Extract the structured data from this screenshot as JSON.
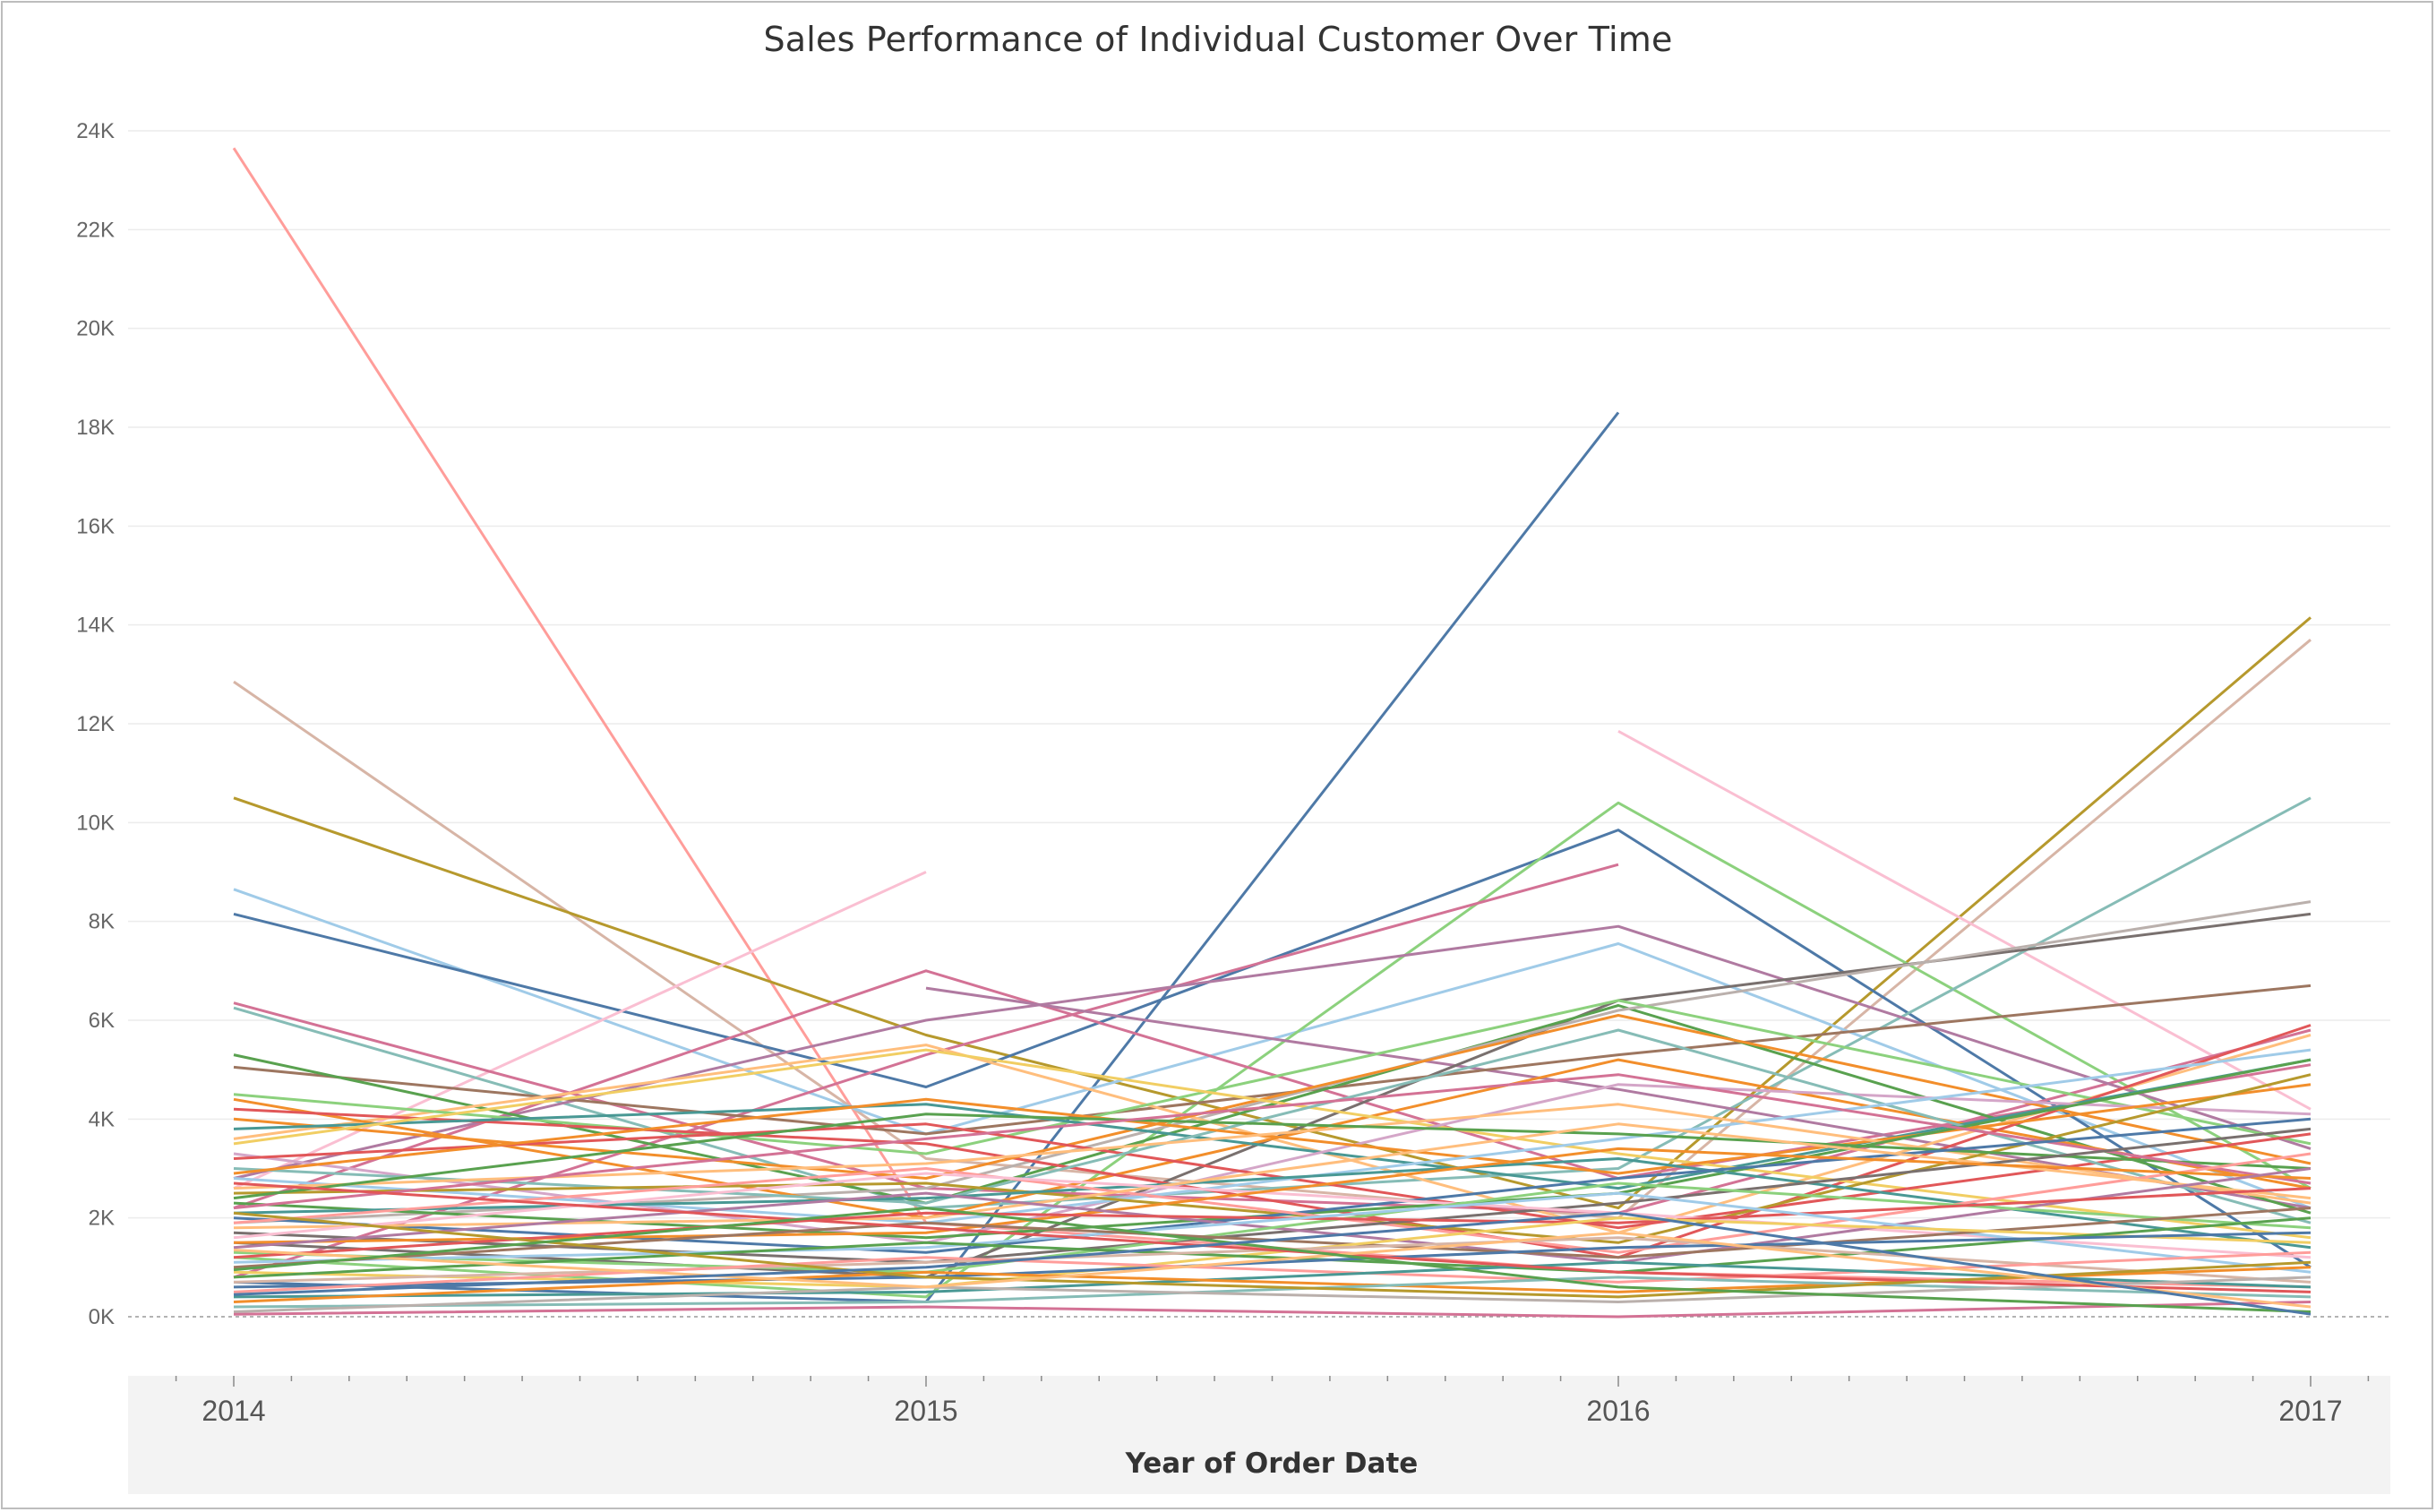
{
  "chart_data": {
    "type": "line",
    "title": "Sales Performance of Individual Customer Over Time",
    "xlabel": "Year of Order Date",
    "ylabel": "",
    "x": [
      2014,
      2015,
      2016,
      2017
    ],
    "x_tick_labels": [
      "2014",
      "2015",
      "2016",
      "2017"
    ],
    "ylim": [
      -1200,
      24000
    ],
    "y_ticks": [
      0,
      2000,
      4000,
      6000,
      8000,
      10000,
      12000,
      14000,
      16000,
      18000,
      20000,
      22000,
      24000
    ],
    "y_tick_labels": [
      "0K",
      "2K",
      "4K",
      "6K",
      "8K",
      "10K",
      "12K",
      "14K",
      "16K",
      "18K",
      "20K",
      "22K",
      "24K"
    ],
    "grid": true,
    "legend": "none",
    "palette": [
      "#4e79a7",
      "#a0cbe8",
      "#f28e2b",
      "#ffbe7d",
      "#59a14f",
      "#8cd17d",
      "#b6992d",
      "#f1ce63",
      "#499894",
      "#86bcb6",
      "#e15759",
      "#ff9d9a",
      "#79706e",
      "#bab0ac",
      "#d37295",
      "#fabfd2",
      "#b07aa1",
      "#d4a6c8",
      "#9d7660",
      "#d7b5a6"
    ],
    "series": [
      {
        "values": [
          23650,
          1900,
          900,
          600
        ],
        "color": "#ff9d9a"
      },
      {
        "values": [
          700,
          300,
          18300,
          null
        ],
        "color": "#4e79a7"
      },
      {
        "values": [
          12850,
          3200,
          2000,
          13700
        ],
        "color": "#d7b5a6"
      },
      {
        "values": [
          10500,
          5700,
          2200,
          14150
        ],
        "color": "#b6992d"
      },
      {
        "values": [
          8650,
          3700,
          7550,
          2200
        ],
        "color": "#a0cbe8"
      },
      {
        "values": [
          8150,
          4650,
          9850,
          1000
        ],
        "color": "#4e79a7"
      },
      {
        "values": [
          null,
          null,
          11850,
          4200
        ],
        "color": "#fabfd2"
      },
      {
        "values": [
          2600,
          9000,
          null,
          null
        ],
        "color": "#fabfd2"
      },
      {
        "values": [
          1200,
          400,
          10400,
          2600
        ],
        "color": "#8cd17d"
      },
      {
        "values": [
          800,
          5300,
          9150,
          null
        ],
        "color": "#d37295"
      },
      {
        "values": [
          6350,
          2600,
          2100,
          5800
        ],
        "color": "#d37295"
      },
      {
        "values": [
          6250,
          2200,
          3000,
          10500
        ],
        "color": "#86bcb6"
      },
      {
        "values": [
          2200,
          7000,
          2800,
          5100
        ],
        "color": "#d37295"
      },
      {
        "values": [
          null,
          6650,
          4600,
          2200
        ],
        "color": "#b07aa1"
      },
      {
        "values": [
          2800,
          6000,
          7900,
          3400
        ],
        "color": "#b07aa1"
      },
      {
        "values": [
          1500,
          800,
          6400,
          8150
        ],
        "color": "#79706e"
      },
      {
        "values": [
          5050,
          3700,
          5300,
          6700
        ],
        "color": "#9d7660"
      },
      {
        "values": [
          5300,
          2300,
          6300,
          2100
        ],
        "color": "#59a14f"
      },
      {
        "values": [
          1900,
          2600,
          6200,
          8400
        ],
        "color": "#bab0ac"
      },
      {
        "values": [
          3600,
          5500,
          1700,
          5700
        ],
        "color": "#ffbe7d"
      },
      {
        "values": [
          4500,
          3300,
          6400,
          3500
        ],
        "color": "#8cd17d"
      },
      {
        "values": [
          4400,
          2000,
          5200,
          2600
        ],
        "color": "#f28e2b"
      },
      {
        "values": [
          4200,
          3500,
          1200,
          5900
        ],
        "color": "#e15759"
      },
      {
        "values": [
          4000,
          2800,
          6100,
          3100
        ],
        "color": "#f28e2b"
      },
      {
        "values": [
          3800,
          4300,
          2600,
          5200
        ],
        "color": "#499894"
      },
      {
        "values": [
          3500,
          5400,
          3300,
          1600
        ],
        "color": "#f1ce63"
      },
      {
        "values": [
          3300,
          1500,
          4700,
          4100
        ],
        "color": "#d4a6c8"
      },
      {
        "values": [
          3200,
          3900,
          1800,
          3700
        ],
        "color": "#e15759"
      },
      {
        "values": [
          3000,
          2300,
          5800,
          1900
        ],
        "color": "#86bcb6"
      },
      {
        "values": [
          2900,
          4400,
          2900,
          4700
        ],
        "color": "#f28e2b"
      },
      {
        "values": [
          2800,
          1900,
          3600,
          5400
        ],
        "color": "#a0cbe8"
      },
      {
        "values": [
          2600,
          3100,
          4300,
          2300
        ],
        "color": "#ffbe7d"
      },
      {
        "values": [
          2500,
          2700,
          1500,
          4900
        ],
        "color": "#b6992d"
      },
      {
        "values": [
          2400,
          4100,
          3700,
          3000
        ],
        "color": "#59a14f"
      },
      {
        "values": [
          2300,
          1600,
          2500,
          5200
        ],
        "color": "#59a14f"
      },
      {
        "values": [
          2200,
          3600,
          4900,
          2700
        ],
        "color": "#d37295"
      },
      {
        "values": [
          2100,
          2400,
          3200,
          1400
        ],
        "color": "#499894"
      },
      {
        "values": [
          2000,
          1300,
          2800,
          4000
        ],
        "color": "#4e79a7"
      },
      {
        "values": [
          1900,
          3000,
          1300,
          3300
        ],
        "color": "#ff9d9a"
      },
      {
        "values": [
          1800,
          2000,
          3900,
          2400
        ],
        "color": "#ffbe7d"
      },
      {
        "values": [
          1700,
          1100,
          2300,
          3800
        ],
        "color": "#79706e"
      },
      {
        "values": [
          1600,
          2900,
          2100,
          1200
        ],
        "color": "#fabfd2"
      },
      {
        "values": [
          1500,
          1700,
          3400,
          2800
        ],
        "color": "#f28e2b"
      },
      {
        "values": [
          1400,
          2500,
          1100,
          3000
        ],
        "color": "#b07aa1"
      },
      {
        "values": [
          1300,
          900,
          2700,
          1800
        ],
        "color": "#8cd17d"
      },
      {
        "values": [
          1200,
          2100,
          1900,
          2600
        ],
        "color": "#e15759"
      },
      {
        "values": [
          1100,
          1400,
          2500,
          900
        ],
        "color": "#a0cbe8"
      },
      {
        "values": [
          1000,
          1900,
          1200,
          2200
        ],
        "color": "#9d7660"
      },
      {
        "values": [
          900,
          600,
          2000,
          1500
        ],
        "color": "#f1ce63"
      },
      {
        "values": [
          800,
          1500,
          900,
          2000
        ],
        "color": "#59a14f"
      },
      {
        "values": [
          700,
          1100,
          1600,
          700
        ],
        "color": "#d7b5a6"
      },
      {
        "values": [
          600,
          800,
          1400,
          1700
        ],
        "color": "#4e79a7"
      },
      {
        "values": [
          500,
          1200,
          700,
          1300
        ],
        "color": "#ff9d9a"
      },
      {
        "values": [
          400,
          500,
          1100,
          600
        ],
        "color": "#499894"
      },
      {
        "values": [
          300,
          900,
          500,
          1000
        ],
        "color": "#f28e2b"
      },
      {
        "values": [
          200,
          300,
          800,
          400
        ],
        "color": "#86bcb6"
      },
      {
        "values": [
          100,
          600,
          300,
          800
        ],
        "color": "#bab0ac"
      },
      {
        "values": [
          50,
          200,
          0,
          300
        ],
        "color": "#d37295"
      },
      {
        "values": [
          2700,
          1800,
          900,
          500
        ],
        "color": "#e15759"
      },
      {
        "values": [
          2100,
          800,
          400,
          1100
        ],
        "color": "#b6992d"
      },
      {
        "values": [
          1350,
          600,
          1700,
          200
        ],
        "color": "#ffbe7d"
      },
      {
        "values": [
          950,
          2200,
          600,
          100
        ],
        "color": "#59a14f"
      },
      {
        "values": [
          450,
          1000,
          2100,
          50
        ],
        "color": "#4e79a7"
      }
    ]
  }
}
